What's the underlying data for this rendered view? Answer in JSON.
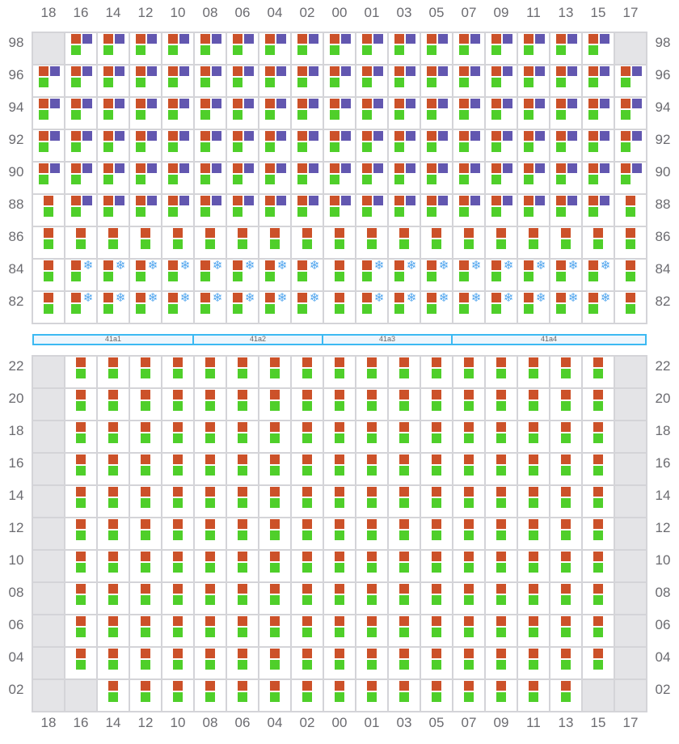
{
  "colors": {
    "red": "#cc5129",
    "purple": "#6257b0",
    "green": "#4fcf2a",
    "snowflake": "#4ea4ee",
    "empty": "#e4e4e7"
  },
  "legend_codes": {
    "rpg": "red+purple+green",
    "rsg": "red+snowflake+green",
    "rg": "red+green",
    "x": "empty"
  },
  "snowflake_icon": "❄",
  "columns": [
    "18",
    "16",
    "14",
    "12",
    "10",
    "08",
    "06",
    "04",
    "02",
    "00",
    "01",
    "03",
    "05",
    "07",
    "09",
    "11",
    "13",
    "15",
    "17"
  ],
  "top_grid": {
    "rows": [
      {
        "label": "98",
        "cells": [
          "x",
          "rpg",
          "rpg",
          "rpg",
          "rpg",
          "rpg",
          "rpg",
          "rpg",
          "rpg",
          "rpg",
          "rpg",
          "rpg",
          "rpg",
          "rpg",
          "rpg",
          "rpg",
          "rpg",
          "rpg",
          "x"
        ]
      },
      {
        "label": "96",
        "cells": [
          "rpg",
          "rpg",
          "rpg",
          "rpg",
          "rpg",
          "rpg",
          "rpg",
          "rpg",
          "rpg",
          "rpg",
          "rpg",
          "rpg",
          "rpg",
          "rpg",
          "rpg",
          "rpg",
          "rpg",
          "rpg",
          "rpg"
        ]
      },
      {
        "label": "94",
        "cells": [
          "rpg",
          "rpg",
          "rpg",
          "rpg",
          "rpg",
          "rpg",
          "rpg",
          "rpg",
          "rpg",
          "rpg",
          "rpg",
          "rpg",
          "rpg",
          "rpg",
          "rpg",
          "rpg",
          "rpg",
          "rpg",
          "rpg"
        ]
      },
      {
        "label": "92",
        "cells": [
          "rpg",
          "rpg",
          "rpg",
          "rpg",
          "rpg",
          "rpg",
          "rpg",
          "rpg",
          "rpg",
          "rpg",
          "rpg",
          "rpg",
          "rpg",
          "rpg",
          "rpg",
          "rpg",
          "rpg",
          "rpg",
          "rpg"
        ]
      },
      {
        "label": "90",
        "cells": [
          "rpg",
          "rpg",
          "rpg",
          "rpg",
          "rpg",
          "rpg",
          "rpg",
          "rpg",
          "rpg",
          "rpg",
          "rpg",
          "rpg",
          "rpg",
          "rpg",
          "rpg",
          "rpg",
          "rpg",
          "rpg",
          "rpg"
        ]
      },
      {
        "label": "88",
        "cells": [
          "rg",
          "rpg",
          "rpg",
          "rpg",
          "rpg",
          "rpg",
          "rpg",
          "rpg",
          "rpg",
          "rpg",
          "rpg",
          "rpg",
          "rpg",
          "rpg",
          "rpg",
          "rpg",
          "rpg",
          "rpg",
          "rg"
        ]
      },
      {
        "label": "86",
        "cells": [
          "rg",
          "rg",
          "rg",
          "rg",
          "rg",
          "rg",
          "rg",
          "rg",
          "rg",
          "rg",
          "rg",
          "rg",
          "rg",
          "rg",
          "rg",
          "rg",
          "rg",
          "rg",
          "rg"
        ]
      },
      {
        "label": "84",
        "cells": [
          "rg",
          "rsg",
          "rsg",
          "rsg",
          "rsg",
          "rsg",
          "rsg",
          "rsg",
          "rsg",
          "rg",
          "rsg",
          "rsg",
          "rsg",
          "rsg",
          "rsg",
          "rsg",
          "rsg",
          "rsg",
          "rg"
        ]
      },
      {
        "label": "82",
        "cells": [
          "rg",
          "rsg",
          "rsg",
          "rsg",
          "rsg",
          "rsg",
          "rsg",
          "rsg",
          "rsg",
          "rg",
          "rsg",
          "rsg",
          "rsg",
          "rsg",
          "rsg",
          "rsg",
          "rsg",
          "rsg",
          "rg"
        ]
      }
    ]
  },
  "band": {
    "segments": [
      {
        "label": "41a1",
        "span": 5
      },
      {
        "label": "41a2",
        "span": 4
      },
      {
        "label": "41a3",
        "span": 4
      },
      {
        "label": "41a4",
        "span": 6
      }
    ]
  },
  "bottom_grid": {
    "rows": [
      {
        "label": "22",
        "pattern": "standard"
      },
      {
        "label": "20",
        "pattern": "standard"
      },
      {
        "label": "18",
        "pattern": "standard"
      },
      {
        "label": "16",
        "pattern": "standard"
      },
      {
        "label": "14",
        "pattern": "standard"
      },
      {
        "label": "12",
        "pattern": "standard"
      },
      {
        "label": "10",
        "pattern": "standard"
      },
      {
        "label": "08",
        "pattern": "standard"
      },
      {
        "label": "06",
        "pattern": "standard"
      },
      {
        "label": "04",
        "pattern": "standard"
      },
      {
        "label": "02",
        "pattern": "last"
      }
    ],
    "patterns": {
      "standard": [
        "x",
        "rg",
        "rg",
        "rg",
        "rg",
        "rg",
        "rg",
        "rg",
        "rg",
        "rg",
        "rg",
        "rg",
        "rg",
        "rg",
        "rg",
        "rg",
        "rg",
        "rg",
        "x"
      ],
      "last": [
        "x",
        "x",
        "rg",
        "rg",
        "rg",
        "rg",
        "rg",
        "rg",
        "rg",
        "rg",
        "rg",
        "rg",
        "rg",
        "rg",
        "rg",
        "rg",
        "rg",
        "x",
        "x"
      ]
    }
  }
}
